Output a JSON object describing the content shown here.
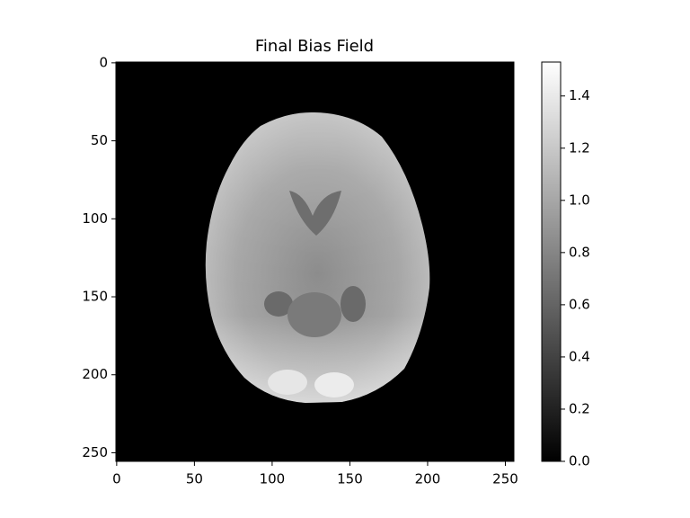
{
  "chart_data": {
    "type": "image",
    "title": "Final Bias Field",
    "xlim": [
      -0.5,
      255.5
    ],
    "xticks": [
      0,
      50,
      100,
      150,
      200,
      250
    ],
    "ylim": [
      255.5,
      -0.5
    ],
    "yticks": [
      0,
      50,
      100,
      150,
      200,
      250
    ],
    "colorbar": {
      "lim": [
        0,
        1.53
      ],
      "colors": [
        "#000000",
        "#ffffff"
      ],
      "ticks": [
        {
          "value": 0,
          "label": "0.0"
        },
        {
          "value": 0.2,
          "label": "0.2"
        },
        {
          "value": 0.4,
          "label": "0.4"
        },
        {
          "value": 0.6,
          "label": "0.6"
        },
        {
          "value": 0.8,
          "label": "0.8"
        },
        {
          "value": 1.0,
          "label": "1.0"
        },
        {
          "value": 1.2,
          "label": "1.2"
        },
        {
          "value": 1.4,
          "label": "1.4"
        }
      ]
    }
  }
}
